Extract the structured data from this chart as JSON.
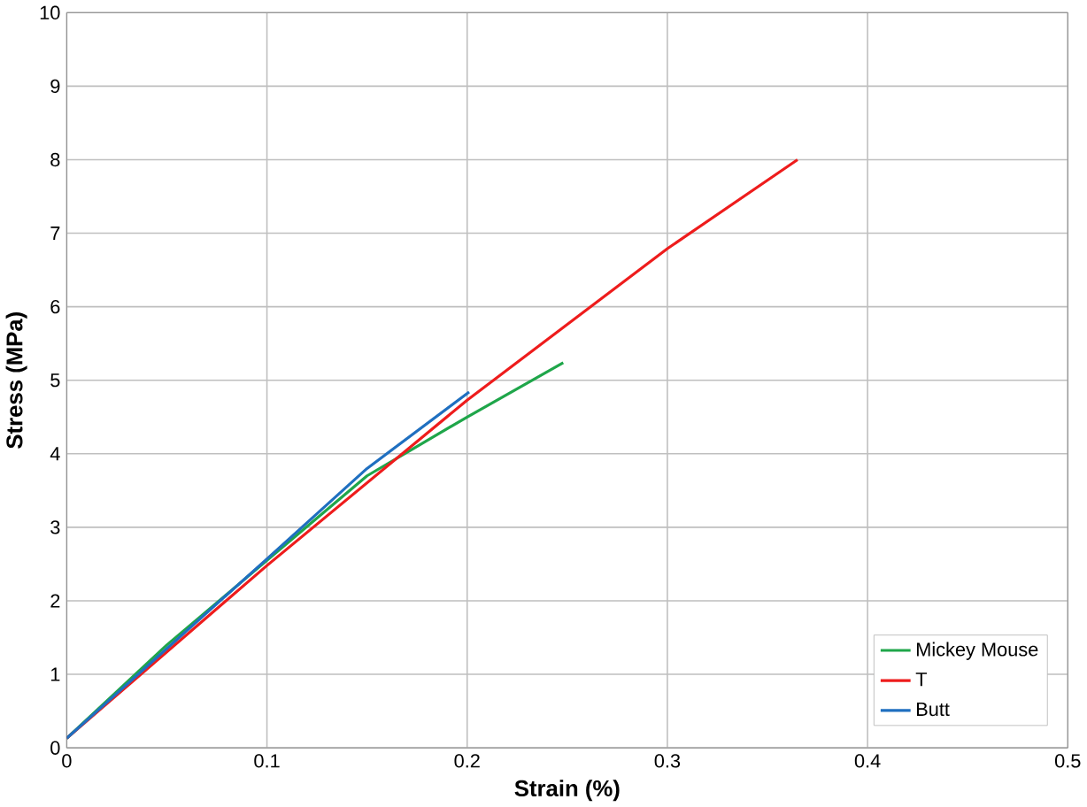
{
  "chart_data": {
    "type": "line",
    "xlabel": "Strain (%)",
    "ylabel": "Stress (MPa)",
    "xlim": [
      0,
      0.5
    ],
    "ylim": [
      0,
      10
    ],
    "xticks": [
      0,
      0.1,
      0.2,
      0.3,
      0.4,
      0.5
    ],
    "yticks": [
      0,
      1,
      2,
      3,
      4,
      5,
      6,
      7,
      8,
      9,
      10
    ],
    "grid": true,
    "legend": "bottom right",
    "series": [
      {
        "name": "Mickey Mouse",
        "color": "#1fa64a",
        "x": [
          0,
          0.05,
          0.1,
          0.15,
          0.2,
          0.248
        ],
        "values": [
          0.13,
          1.4,
          2.55,
          3.7,
          4.5,
          5.24
        ]
      },
      {
        "name": "T",
        "color": "#ee1c1c",
        "x": [
          0,
          0.1,
          0.2,
          0.3,
          0.365
        ],
        "values": [
          0.13,
          2.48,
          4.73,
          6.79,
          8.0
        ]
      },
      {
        "name": "Butt",
        "color": "#1f6fc0",
        "x": [
          0,
          0.1,
          0.15,
          0.201
        ],
        "values": [
          0.13,
          2.57,
          3.8,
          4.84
        ]
      }
    ]
  }
}
